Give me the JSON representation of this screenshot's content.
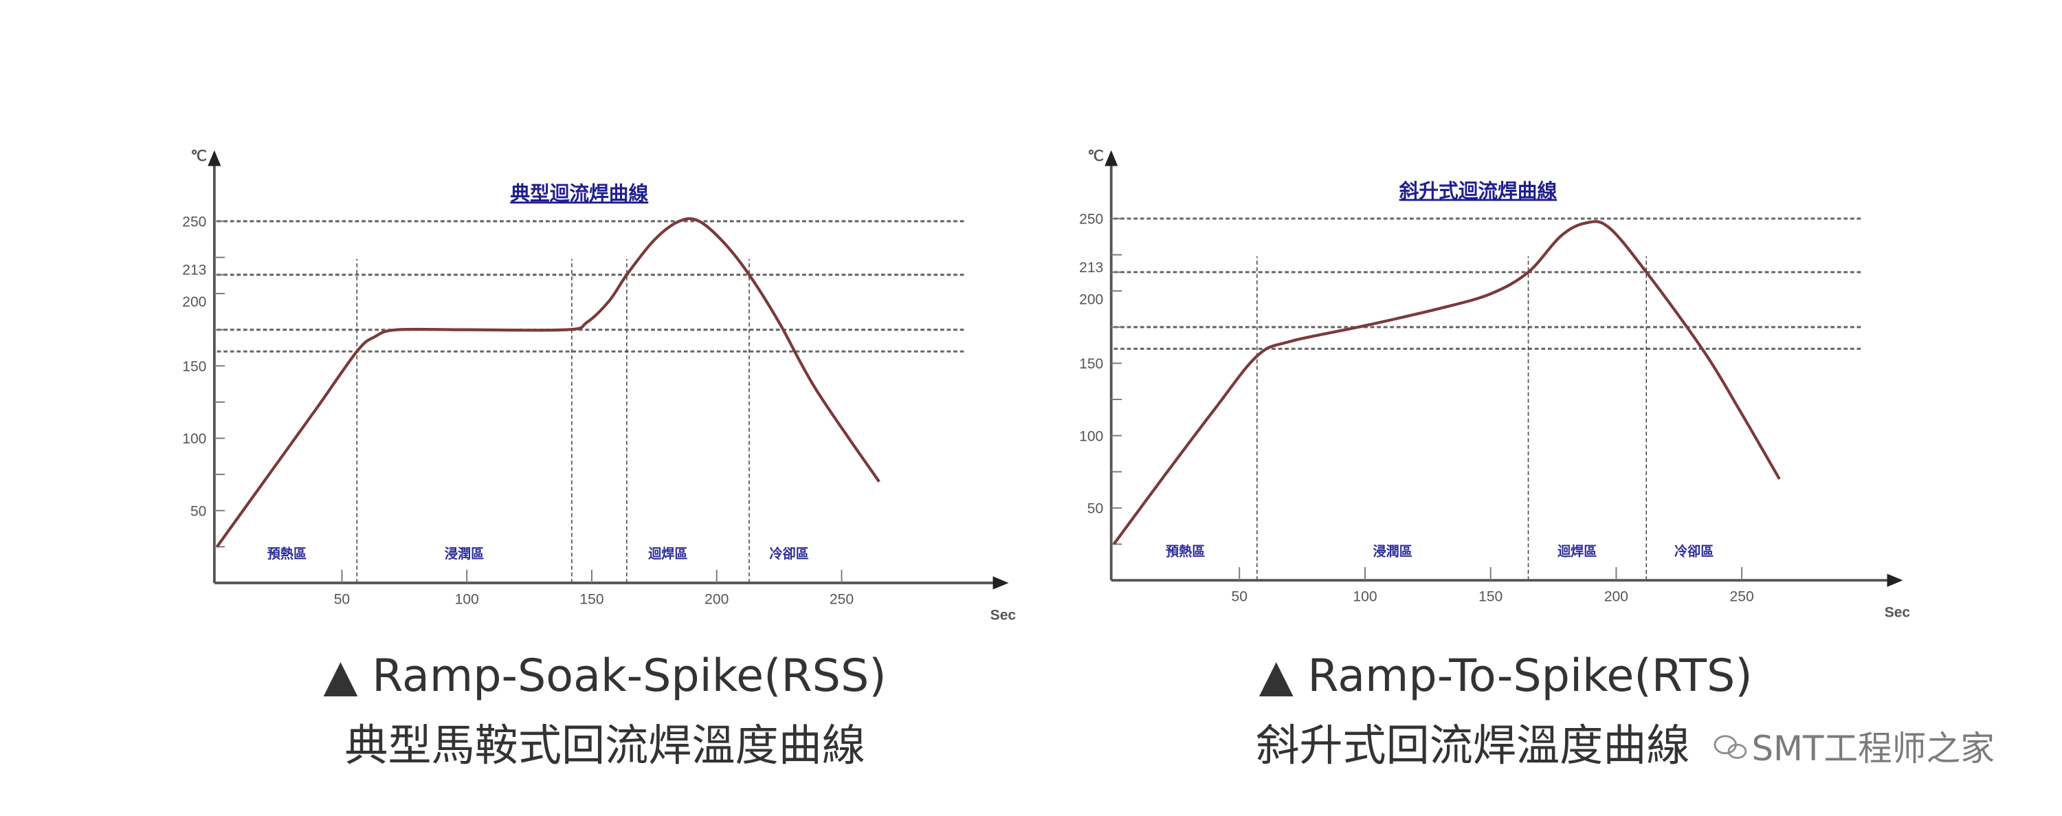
{
  "chart_data": [
    {
      "type": "line",
      "title": "典型迴流焊曲線",
      "ylabel": "℃",
      "xlabel": "Sec",
      "ylim": [
        0,
        270
      ],
      "xlim": [
        0,
        310
      ],
      "yticks": [
        50,
        100,
        150,
        200,
        213,
        250
      ],
      "xticks": [
        50,
        100,
        150,
        200,
        250
      ],
      "reference_lines_y": [
        250,
        213,
        175,
        160
      ],
      "phase_boundaries_x": [
        56,
        142,
        164,
        213
      ],
      "zones": [
        "預熱區",
        "浸潤區",
        "迴焊區",
        "冷卻區"
      ],
      "series": [
        {
          "points": [
            [
              0,
              25
            ],
            [
              20,
              73
            ],
            [
              40,
              121
            ],
            [
              56,
              160
            ],
            [
              63,
              170
            ],
            [
              72,
              175
            ],
            [
              100,
              175
            ],
            [
              140,
              175
            ],
            [
              148,
              180
            ],
            [
              157,
              195
            ],
            [
              164,
              213
            ],
            [
              175,
              237
            ],
            [
              185,
              250
            ],
            [
              193,
              250
            ],
            [
              203,
              235
            ],
            [
              213,
              213
            ],
            [
              225,
              180
            ],
            [
              240,
              133
            ],
            [
              265,
              70
            ]
          ]
        }
      ],
      "curve_color": "#7a3a3a",
      "caption": "▲ Ramp-Soak-Spike(RSS)",
      "caption_zh": "典型馬鞍式回流焊溫度曲線"
    },
    {
      "type": "line",
      "title": "斜升式迴流焊曲線",
      "ylabel": "℃",
      "xlabel": "Sec",
      "ylim": [
        0,
        270
      ],
      "xlim": [
        0,
        310
      ],
      "yticks": [
        50,
        100,
        150,
        200,
        213,
        250
      ],
      "xticks": [
        50,
        100,
        150,
        200,
        250
      ],
      "reference_lines_y": [
        250,
        213,
        175,
        160
      ],
      "phase_boundaries_x": [
        57,
        165,
        212
      ],
      "zones": [
        "預熱區",
        "浸潤區",
        "迴焊區",
        "冷卻區"
      ],
      "series": [
        {
          "points": [
            [
              0,
              25
            ],
            [
              20,
              72
            ],
            [
              40,
              118
            ],
            [
              57,
              155
            ],
            [
              70,
              165
            ],
            [
              100,
              176
            ],
            [
              130,
              188
            ],
            [
              150,
              198
            ],
            [
              165,
              213
            ],
            [
              178,
              238
            ],
            [
              188,
              247
            ],
            [
              197,
              244
            ],
            [
              212,
              213
            ],
            [
              235,
              158
            ],
            [
              250,
              115
            ],
            [
              265,
              70
            ]
          ]
        }
      ],
      "curve_color": "#7a3a3a",
      "caption": "▲ Ramp-To-Spike(RTS)",
      "caption_zh": "斜升式回流焊溫度曲線"
    }
  ],
  "watermark": "SMT工程师之家"
}
